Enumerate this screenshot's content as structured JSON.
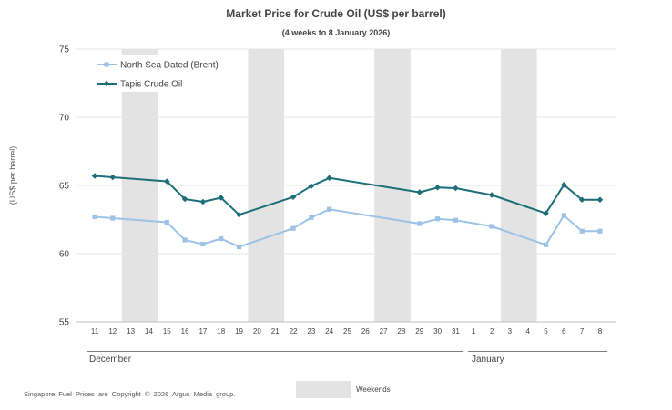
{
  "chart_data": {
    "type": "line",
    "title": "Market Price for Crude Oil (US$ per barrel)",
    "subtitle": "(4 weeks to 8 January 2026)",
    "ylabel": "(US$ per barrel)",
    "ylim": [
      55,
      75
    ],
    "yticks": [
      55,
      60,
      65,
      70,
      75
    ],
    "months": [
      "December",
      "January"
    ],
    "categories": [
      "11",
      "12",
      "13",
      "14",
      "15",
      "16",
      "17",
      "18",
      "19",
      "20",
      "21",
      "22",
      "23",
      "24",
      "25",
      "26",
      "27",
      "28",
      "29",
      "30",
      "31",
      "1",
      "2",
      "3",
      "4",
      "5",
      "6",
      "7",
      "8"
    ],
    "weekend_blocks": [
      [
        "13",
        "14"
      ],
      [
        "20",
        "21"
      ],
      [
        "27",
        "28"
      ],
      [
        "3",
        "4"
      ]
    ],
    "weekend_label": "Weekends",
    "series": [
      {
        "name": "North Sea Dated (Brent)",
        "color": "#9cc3e5",
        "marker": "square",
        "values": [
          62.7,
          62.6,
          null,
          null,
          62.3,
          61.0,
          60.7,
          61.1,
          60.5,
          null,
          null,
          61.85,
          62.65,
          63.25,
          null,
          null,
          null,
          null,
          62.2,
          62.55,
          62.45,
          null,
          62.0,
          null,
          null,
          60.65,
          62.8,
          61.65,
          61.65
        ]
      },
      {
        "name": "Tapis Crude Oil",
        "color": "#1c6e78",
        "marker": "diamond",
        "values": [
          65.7,
          65.6,
          null,
          null,
          65.3,
          64.0,
          63.8,
          64.1,
          62.85,
          null,
          null,
          64.15,
          64.95,
          65.55,
          null,
          null,
          null,
          null,
          64.5,
          64.85,
          64.8,
          null,
          64.3,
          null,
          null,
          62.95,
          65.05,
          63.95,
          63.95
        ]
      }
    ]
  },
  "footer": {
    "copyright": "Singapore Fuel Prices are Copyright © 2026 Argus Media group."
  }
}
